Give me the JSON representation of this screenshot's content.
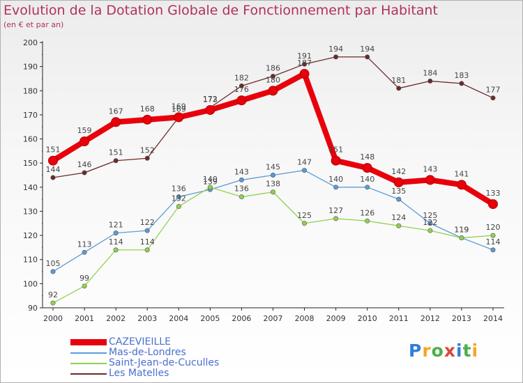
{
  "title": "Evolution de la Dotation Globale de Fonctionnement par Habitant",
  "subtitle": "(en € et par an)",
  "logo": {
    "text": "Proxiti",
    "letter_colors": [
      "#2f7fd6",
      "#f5a623",
      "#4cae4c",
      "#e0453a",
      "#2f7fd6",
      "#4cae4c",
      "#f5a623"
    ]
  },
  "chart_data": {
    "type": "line",
    "x": [
      2000,
      2001,
      2002,
      2003,
      2004,
      2005,
      2006,
      2007,
      2008,
      2009,
      2010,
      2011,
      2012,
      2013,
      2014
    ],
    "ylim": [
      90,
      200
    ],
    "yticks": [
      90,
      100,
      110,
      120,
      130,
      140,
      150,
      160,
      170,
      180,
      190,
      200
    ],
    "grid": false,
    "legend_position": "bottom-left",
    "series": [
      {
        "name": "Les Matelles",
        "color": "#6b2a2a",
        "values": [
          144,
          146,
          151,
          152,
          169,
          173,
          182,
          186,
          191,
          194,
          194,
          181,
          184,
          183,
          177
        ]
      },
      {
        "name": "Mas-de-Londres",
        "color": "#5b9bd5",
        "values": [
          105,
          113,
          121,
          122,
          136,
          139,
          143,
          145,
          147,
          140,
          140,
          135,
          125,
          119,
          114
        ]
      },
      {
        "name": "Saint-Jean-de-Cuculles",
        "color": "#92d050",
        "values": [
          92,
          99,
          114,
          114,
          132,
          140,
          136,
          138,
          125,
          127,
          126,
          124,
          122,
          119,
          120
        ]
      },
      {
        "name": "CAZEVIEILLE",
        "color": "#e8000b",
        "values": [
          151,
          159,
          167,
          168,
          169,
          172,
          176,
          180,
          187,
          151,
          148,
          142,
          143,
          141,
          133
        ]
      }
    ],
    "legend_order": [
      "CAZEVIEILLE",
      "Mas-de-Londres",
      "Saint-Jean-de-Cuculles",
      "Les Matelles"
    ]
  }
}
